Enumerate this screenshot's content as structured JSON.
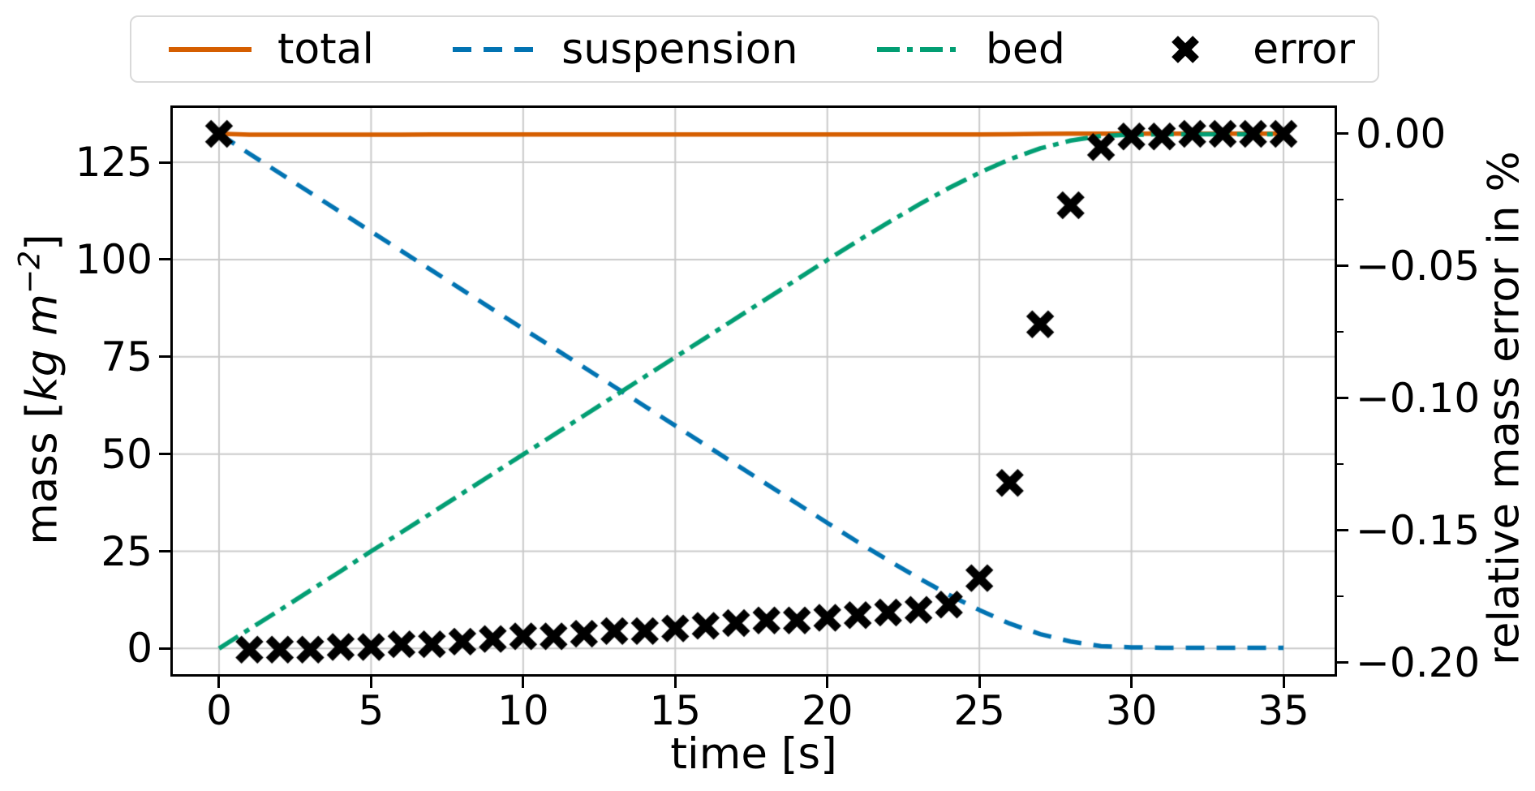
{
  "figure": {
    "background": "#ffffff"
  },
  "legend": {
    "items": [
      {
        "label": "total",
        "color": "#d55e00",
        "style": "solid"
      },
      {
        "label": "suspension",
        "color": "#0173b2",
        "style": "dashed"
      },
      {
        "label": "bed",
        "color": "#029e73",
        "style": "dashdot"
      },
      {
        "label": "error",
        "color": "#000000",
        "style": "x-marker"
      }
    ]
  },
  "axes": {
    "x": {
      "label": "time [s]",
      "ticks": [
        0,
        5,
        10,
        15,
        20,
        25,
        30,
        35
      ],
      "lim": [
        -1.52,
        36.68
      ]
    },
    "y_left": {
      "label_prefix": "mass [",
      "label_math": "kg m",
      "label_sup": "−2",
      "label_suffix": "]",
      "ticks": [
        0,
        25,
        50,
        75,
        100,
        125
      ],
      "lim": [
        -6.6,
        139.0
      ]
    },
    "y_right": {
      "label": "relative mass error in %",
      "tick_labels": [
        "0.00",
        "−0.05",
        "−0.10",
        "−0.15",
        "−0.20"
      ],
      "tick_values": [
        0,
        -0.05,
        -0.1,
        -0.15,
        -0.2
      ],
      "minor_ticks": [
        -0.025,
        -0.075,
        -0.125,
        -0.175
      ],
      "lim": [
        -0.2043,
        0.0098
      ]
    }
  },
  "style": {
    "grid_color": "#c9c9c9",
    "spine_color": "#000000",
    "line_width": 5.5,
    "marker_size": 38
  },
  "chart_data": {
    "type": "line",
    "title": "",
    "xlabel": "time [s]",
    "ylabel_left": "mass [kg m⁻²]",
    "ylabel_right": "relative mass error in %",
    "grid": true,
    "legend_position": "top",
    "xlim": [
      -1.52,
      36.68
    ],
    "ylim_left": [
      -6.6,
      139.0
    ],
    "ylim_right": [
      -0.2043,
      0.0098
    ],
    "x": [
      0,
      1,
      2,
      3,
      4,
      5,
      6,
      7,
      8,
      9,
      10,
      11,
      12,
      13,
      14,
      15,
      16,
      17,
      18,
      19,
      20,
      21,
      22,
      23,
      24,
      25,
      26,
      27,
      28,
      29,
      30,
      31,
      32,
      33,
      34,
      35
    ],
    "series": [
      {
        "name": "total",
        "axis": "left",
        "color": "#d55e00",
        "linestyle": "solid",
        "marker": "none",
        "values": [
          132.4,
          132.14,
          132.14,
          132.14,
          132.14,
          132.14,
          132.14,
          132.15,
          132.15,
          132.15,
          132.15,
          132.15,
          132.15,
          132.15,
          132.15,
          132.15,
          132.15,
          132.16,
          132.16,
          132.16,
          132.16,
          132.16,
          132.16,
          132.16,
          132.16,
          132.18,
          132.23,
          132.3,
          132.36,
          132.39,
          132.4,
          132.4,
          132.4,
          132.4,
          132.4,
          132.4
        ]
      },
      {
        "name": "suspension",
        "axis": "left",
        "color": "#0173b2",
        "linestyle": "dashed",
        "marker": "none",
        "values": [
          132.4,
          127.2,
          122.2,
          117.2,
          112.2,
          107.2,
          102.2,
          97.2,
          92.2,
          87.2,
          82.2,
          77.3,
          72.3,
          67.3,
          62.3,
          57.3,
          52.3,
          47.3,
          42.3,
          37.3,
          32.3,
          27.4,
          22.7,
          18.1,
          13.8,
          9.9,
          6.4,
          3.7,
          1.8,
          0.6,
          0.3,
          0.2,
          0.2,
          0.2,
          0.2,
          0.2
        ]
      },
      {
        "name": "bed",
        "axis": "left",
        "color": "#029e73",
        "linestyle": "dashdot",
        "marker": "none",
        "values": [
          0.0,
          5.0,
          9.9,
          14.9,
          19.9,
          25.0,
          29.9,
          34.9,
          39.9,
          44.9,
          49.9,
          54.9,
          59.9,
          64.9,
          69.9,
          74.9,
          79.9,
          84.9,
          89.9,
          94.9,
          99.9,
          104.8,
          109.5,
          114.1,
          118.4,
          122.3,
          125.8,
          128.6,
          130.6,
          131.8,
          132.1,
          132.2,
          132.2,
          132.2,
          132.2,
          132.2
        ]
      },
      {
        "name": "error",
        "axis": "right",
        "color": "#000000",
        "linestyle": "none",
        "marker": "X",
        "values": [
          0.0,
          -0.195,
          -0.195,
          -0.195,
          -0.194,
          -0.194,
          -0.193,
          -0.193,
          -0.192,
          -0.191,
          -0.19,
          -0.19,
          -0.189,
          -0.188,
          -0.188,
          -0.187,
          -0.186,
          -0.185,
          -0.184,
          -0.184,
          -0.183,
          -0.182,
          -0.181,
          -0.18,
          -0.178,
          -0.168,
          -0.132,
          -0.072,
          -0.027,
          -0.005,
          -0.001,
          -0.001,
          0.0,
          0.0,
          0.0,
          0.0
        ]
      }
    ]
  }
}
